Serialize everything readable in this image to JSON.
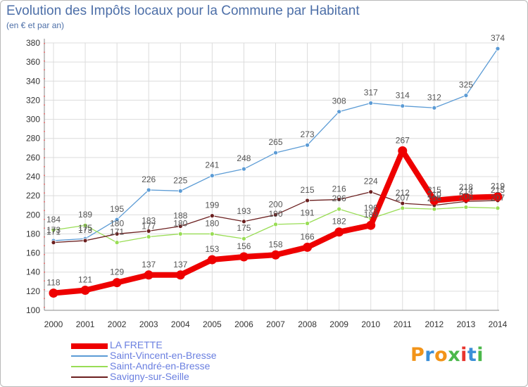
{
  "header": {
    "title": "Evolution des Impôts locaux pour la Commune par Habitant",
    "subtitle": "(en € et par an)"
  },
  "chart_data": {
    "type": "line",
    "title": "Evolution des Impôts locaux pour la Commune par Habitant",
    "subtitle": "(en € et par an)",
    "x": [
      "2000",
      "2001",
      "2002",
      "2003",
      "2004",
      "2005",
      "2006",
      "2007",
      "2008",
      "2009",
      "2010",
      "2011",
      "2012",
      "2013",
      "2014"
    ],
    "ylim": [
      100,
      380
    ],
    "yticks": [
      100,
      120,
      140,
      160,
      180,
      200,
      220,
      240,
      260,
      280,
      300,
      320,
      340,
      360,
      380
    ],
    "grid": true,
    "legend_position": "bottom-left",
    "series": [
      {
        "name": "LA FRETTE",
        "color": "#ee0000",
        "values": [
          118,
          121,
          129,
          137,
          137,
          153,
          156,
          158,
          166,
          182,
          189,
          267,
          215,
          218,
          219
        ]
      },
      {
        "name": "Saint-Vincent-en-Bresse",
        "color": "#5b9bd5",
        "values": [
          173,
          175,
          195,
          226,
          225,
          241,
          248,
          265,
          273,
          308,
          317,
          314,
          312,
          325,
          374
        ]
      },
      {
        "name": "Saint-André-en-Bresse",
        "color": "#99dd55",
        "values": [
          184,
          189,
          171,
          177,
          180,
          180,
          175,
          190,
          191,
          206,
          196,
          207,
          206,
          208,
          207
        ]
      },
      {
        "name": "Savigny-sur-Seille",
        "color": "#6b1f1f",
        "values": [
          171,
          173,
          180,
          183,
          188,
          199,
          193,
          200,
          215,
          216,
          224,
          212,
          210,
          214,
          215
        ]
      }
    ]
  },
  "logo": {
    "letters": [
      "P",
      "r",
      "o",
      "x",
      "i",
      "t",
      "i"
    ],
    "colors": [
      "#f29419",
      "#3b8fd8",
      "#f29419",
      "#4bb84b",
      "#e8342e",
      "#3b8fd8",
      "#4bb84b"
    ]
  }
}
